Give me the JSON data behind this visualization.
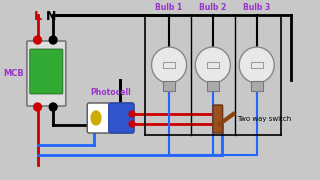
{
  "bg_color": "#1a1a1a",
  "colors": {
    "red": "#cc0000",
    "black": "#000000",
    "blue": "#2266ff",
    "purple": "#9933cc",
    "white": "#ffffff",
    "gray": "#aaaaaa",
    "brown": "#8B4513",
    "green": "#33aa33",
    "yellow": "#ccaa00",
    "dark_blue": "#2244aa"
  },
  "L_label": "L",
  "N_label": "N",
  "MCB_label": "MCB",
  "photocell_label": "Photocell",
  "two_way_label": "Two way switch",
  "bulb_labels": [
    "Bulb 1",
    "Bulb 2",
    "Bulb 3"
  ]
}
